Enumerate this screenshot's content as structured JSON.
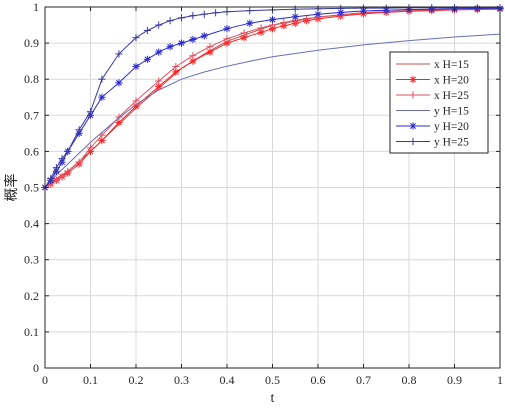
{
  "chart_data": {
    "type": "line",
    "title": "",
    "xlabel": "t",
    "ylabel": "概率",
    "xlim": [
      0,
      1
    ],
    "ylim": [
      0,
      1
    ],
    "xticks": [
      0,
      0.1,
      0.2,
      0.3,
      0.4,
      0.5,
      0.6,
      0.7,
      0.8,
      0.9,
      1
    ],
    "xtick_labels": [
      "0",
      "0.1",
      "0.2",
      "0.3",
      "0.4",
      "0.5",
      "0.6",
      "0.7",
      "0.8",
      "0.9",
      "1"
    ],
    "yticks": [
      0,
      0.1,
      0.2,
      0.3,
      0.4,
      0.5,
      0.6,
      0.7,
      0.8,
      0.9,
      1
    ],
    "ytick_labels": [
      "0",
      "0.1",
      "0.2",
      "0.3",
      "0.4",
      "0.5",
      "0.6",
      "0.7",
      "0.8",
      "0.9",
      "1"
    ],
    "grid": true,
    "legend_position": "top-right",
    "series": [
      {
        "name": "x H=15",
        "color": "#c0504d",
        "marker": "none",
        "x": [
          0,
          0.025,
          0.05,
          0.1,
          0.15,
          0.2,
          0.25,
          0.3,
          0.35,
          0.4,
          0.5,
          0.6,
          0.7,
          0.8,
          0.9,
          1
        ],
        "y": [
          0.5,
          0.525,
          0.545,
          0.6,
          0.66,
          0.72,
          0.775,
          0.83,
          0.87,
          0.905,
          0.95,
          0.972,
          0.984,
          0.99,
          0.994,
          0.996
        ]
      },
      {
        "name": "x H=20",
        "color": "#ff2020",
        "marker": "asterisk",
        "x": [
          0,
          0.0125,
          0.025,
          0.0375,
          0.05,
          0.075,
          0.1,
          0.125,
          0.1625,
          0.2,
          0.25,
          0.2875,
          0.325,
          0.3625,
          0.4,
          0.4375,
          0.475,
          0.5,
          0.525,
          0.55,
          0.575,
          0.6,
          0.65,
          0.7,
          0.75,
          0.8,
          0.85,
          0.9,
          0.95,
          1
        ],
        "y": [
          0.5,
          0.51,
          0.52,
          0.53,
          0.54,
          0.565,
          0.6,
          0.63,
          0.68,
          0.725,
          0.78,
          0.82,
          0.85,
          0.875,
          0.9,
          0.915,
          0.93,
          0.94,
          0.948,
          0.955,
          0.962,
          0.967,
          0.975,
          0.981,
          0.985,
          0.988,
          0.99,
          0.992,
          0.993,
          0.994
        ]
      },
      {
        "name": "x H=25",
        "color": "#e05060",
        "marker": "plus",
        "x": [
          0,
          0.0125,
          0.025,
          0.0375,
          0.05,
          0.075,
          0.1,
          0.125,
          0.1625,
          0.2,
          0.25,
          0.2875,
          0.325,
          0.3625,
          0.4,
          0.4375,
          0.475,
          0.5,
          0.525,
          0.55,
          0.575,
          0.6,
          0.65,
          0.7,
          0.75,
          0.8,
          0.85,
          0.9,
          0.95,
          1
        ],
        "y": [
          0.5,
          0.51,
          0.52,
          0.53,
          0.545,
          0.57,
          0.61,
          0.645,
          0.695,
          0.74,
          0.795,
          0.835,
          0.865,
          0.89,
          0.912,
          0.928,
          0.942,
          0.95,
          0.957,
          0.963,
          0.968,
          0.972,
          0.979,
          0.984,
          0.987,
          0.99,
          0.992,
          0.993,
          0.994,
          0.995
        ]
      },
      {
        "name": "y H=15",
        "color": "#6a6fb5",
        "marker": "none",
        "x": [
          0,
          0.025,
          0.05,
          0.1,
          0.15,
          0.2,
          0.25,
          0.3,
          0.35,
          0.4,
          0.45,
          0.5,
          0.6,
          0.7,
          0.8,
          0.9,
          1
        ],
        "y": [
          0.5,
          0.535,
          0.565,
          0.625,
          0.68,
          0.73,
          0.77,
          0.8,
          0.82,
          0.836,
          0.85,
          0.862,
          0.88,
          0.895,
          0.907,
          0.917,
          0.925
        ]
      },
      {
        "name": "y H=20",
        "color": "#2b2bcf",
        "marker": "asterisk",
        "x": [
          0,
          0.0125,
          0.025,
          0.0375,
          0.05,
          0.075,
          0.1,
          0.125,
          0.1625,
          0.2,
          0.225,
          0.25,
          0.275,
          0.3,
          0.325,
          0.35,
          0.4,
          0.45,
          0.5,
          0.55,
          0.6,
          0.65,
          0.7,
          0.75,
          0.8,
          0.85,
          0.9,
          0.95,
          1
        ],
        "y": [
          0.5,
          0.52,
          0.545,
          0.57,
          0.6,
          0.65,
          0.7,
          0.75,
          0.79,
          0.835,
          0.855,
          0.875,
          0.89,
          0.9,
          0.91,
          0.92,
          0.94,
          0.955,
          0.965,
          0.973,
          0.98,
          0.985,
          0.989,
          0.991,
          0.993,
          0.994,
          0.995,
          0.996,
          0.996
        ]
      },
      {
        "name": "y H=25",
        "color": "#3a3a9e",
        "marker": "plus",
        "x": [
          0,
          0.0125,
          0.025,
          0.0375,
          0.05,
          0.075,
          0.1,
          0.125,
          0.1625,
          0.2,
          0.225,
          0.25,
          0.275,
          0.3,
          0.325,
          0.35,
          0.375,
          0.4,
          0.45,
          0.5,
          0.55,
          0.6,
          0.65,
          0.7,
          0.75,
          0.8,
          0.85,
          0.9,
          0.95,
          1
        ],
        "y": [
          0.5,
          0.525,
          0.555,
          0.58,
          0.6,
          0.66,
          0.71,
          0.8,
          0.87,
          0.915,
          0.935,
          0.95,
          0.962,
          0.97,
          0.976,
          0.98,
          0.984,
          0.987,
          0.99,
          0.992,
          0.994,
          0.995,
          0.996,
          0.997,
          0.997,
          0.998,
          0.998,
          0.998,
          0.998,
          0.998
        ]
      }
    ]
  }
}
